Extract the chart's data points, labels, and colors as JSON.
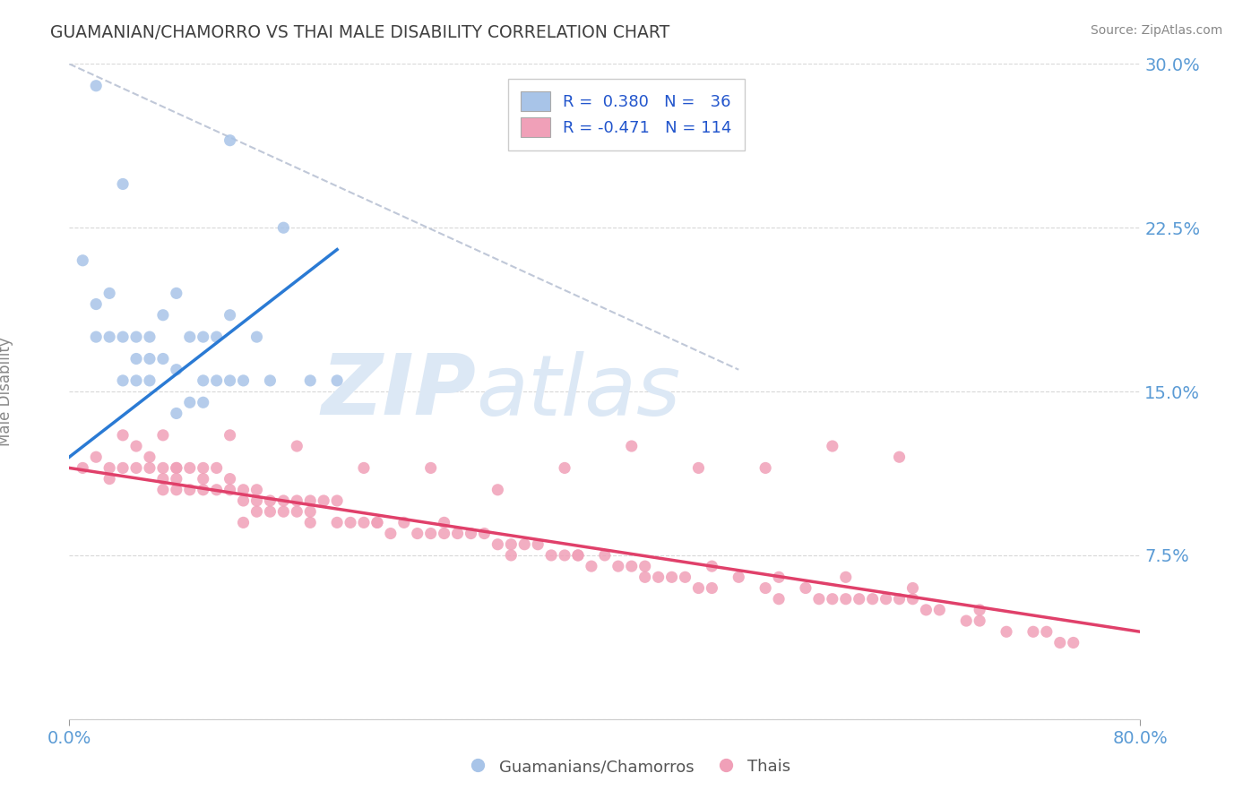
{
  "title": "GUAMANIAN/CHAMORRO VS THAI MALE DISABILITY CORRELATION CHART",
  "source": "Source: ZipAtlas.com",
  "ylabel": "Male Disability",
  "x_min": 0.0,
  "x_max": 0.8,
  "y_min": 0.0,
  "y_max": 0.3,
  "guamanian_color": "#a8c4e8",
  "guamanian_edge_color": "#a8c4e8",
  "thai_color": "#f0a0b8",
  "thai_edge_color": "#f0a0b8",
  "guamanian_line_color": "#2a7ad4",
  "thai_line_color": "#e0406a",
  "dashed_line_color": "#c0c8d8",
  "background_color": "#ffffff",
  "title_color": "#404040",
  "axis_tick_color": "#5b9bd5",
  "ylabel_color": "#888888",
  "source_color": "#888888",
  "watermark_color": "#dce8f5",
  "legend_text_color": "#2255cc",
  "legend_border_color": "#cccccc",
  "grid_color": "#d8d8d8",
  "guamanian_scatter_x": [
    0.02,
    0.04,
    0.01,
    0.02,
    0.03,
    0.03,
    0.02,
    0.04,
    0.04,
    0.05,
    0.05,
    0.05,
    0.06,
    0.06,
    0.06,
    0.07,
    0.07,
    0.08,
    0.08,
    0.09,
    0.1,
    0.1,
    0.11,
    0.11,
    0.12,
    0.12,
    0.13,
    0.14,
    0.15,
    0.16,
    0.18,
    0.2,
    0.08,
    0.09,
    0.1,
    0.12
  ],
  "guamanian_scatter_y": [
    0.29,
    0.245,
    0.21,
    0.19,
    0.195,
    0.175,
    0.175,
    0.175,
    0.155,
    0.175,
    0.165,
    0.155,
    0.175,
    0.165,
    0.155,
    0.185,
    0.165,
    0.195,
    0.16,
    0.175,
    0.175,
    0.155,
    0.175,
    0.155,
    0.185,
    0.155,
    0.155,
    0.175,
    0.155,
    0.225,
    0.155,
    0.155,
    0.14,
    0.145,
    0.145,
    0.265
  ],
  "thai_scatter_x": [
    0.01,
    0.02,
    0.03,
    0.03,
    0.04,
    0.04,
    0.05,
    0.05,
    0.06,
    0.06,
    0.07,
    0.07,
    0.07,
    0.08,
    0.08,
    0.08,
    0.09,
    0.09,
    0.1,
    0.1,
    0.1,
    0.11,
    0.11,
    0.12,
    0.12,
    0.13,
    0.13,
    0.14,
    0.14,
    0.14,
    0.15,
    0.15,
    0.16,
    0.16,
    0.17,
    0.17,
    0.18,
    0.18,
    0.19,
    0.2,
    0.2,
    0.21,
    0.22,
    0.23,
    0.24,
    0.25,
    0.26,
    0.27,
    0.28,
    0.29,
    0.3,
    0.31,
    0.32,
    0.33,
    0.34,
    0.35,
    0.36,
    0.37,
    0.38,
    0.39,
    0.4,
    0.41,
    0.42,
    0.43,
    0.44,
    0.45,
    0.46,
    0.47,
    0.48,
    0.5,
    0.52,
    0.53,
    0.55,
    0.56,
    0.57,
    0.58,
    0.59,
    0.6,
    0.61,
    0.62,
    0.63,
    0.64,
    0.65,
    0.67,
    0.68,
    0.7,
    0.72,
    0.73,
    0.74,
    0.75,
    0.62,
    0.57,
    0.52,
    0.47,
    0.42,
    0.37,
    0.32,
    0.27,
    0.22,
    0.17,
    0.12,
    0.07,
    0.58,
    0.53,
    0.48,
    0.43,
    0.38,
    0.33,
    0.28,
    0.23,
    0.18,
    0.13,
    0.08,
    0.63,
    0.68
  ],
  "thai_scatter_y": [
    0.115,
    0.12,
    0.115,
    0.11,
    0.13,
    0.115,
    0.125,
    0.115,
    0.12,
    0.115,
    0.115,
    0.11,
    0.105,
    0.115,
    0.11,
    0.105,
    0.115,
    0.105,
    0.115,
    0.11,
    0.105,
    0.115,
    0.105,
    0.11,
    0.105,
    0.105,
    0.1,
    0.105,
    0.1,
    0.095,
    0.1,
    0.095,
    0.1,
    0.095,
    0.1,
    0.095,
    0.1,
    0.095,
    0.1,
    0.1,
    0.09,
    0.09,
    0.09,
    0.09,
    0.085,
    0.09,
    0.085,
    0.085,
    0.09,
    0.085,
    0.085,
    0.085,
    0.08,
    0.08,
    0.08,
    0.08,
    0.075,
    0.075,
    0.075,
    0.07,
    0.075,
    0.07,
    0.07,
    0.065,
    0.065,
    0.065,
    0.065,
    0.06,
    0.06,
    0.065,
    0.06,
    0.055,
    0.06,
    0.055,
    0.055,
    0.055,
    0.055,
    0.055,
    0.055,
    0.055,
    0.055,
    0.05,
    0.05,
    0.045,
    0.045,
    0.04,
    0.04,
    0.04,
    0.035,
    0.035,
    0.12,
    0.125,
    0.115,
    0.115,
    0.125,
    0.115,
    0.105,
    0.115,
    0.115,
    0.125,
    0.13,
    0.13,
    0.065,
    0.065,
    0.07,
    0.07,
    0.075,
    0.075,
    0.085,
    0.09,
    0.09,
    0.09,
    0.115,
    0.06,
    0.05
  ],
  "guamanian_trendline_x": [
    0.0,
    0.2
  ],
  "guamanian_trendline_y": [
    0.12,
    0.215
  ],
  "thai_trendline_x": [
    0.0,
    0.8
  ],
  "thai_trendline_y": [
    0.115,
    0.04
  ],
  "dashed_line_x": [
    0.0,
    0.5
  ],
  "dashed_line_y": [
    0.3,
    0.16
  ]
}
